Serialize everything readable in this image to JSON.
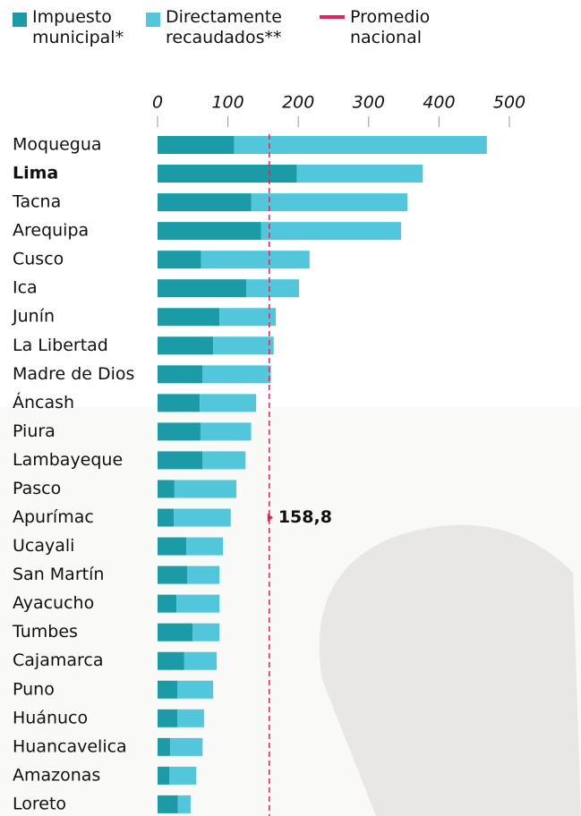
{
  "chart_data": {
    "type": "stacked-bar-horizontal",
    "categories": [
      "Moquegua",
      "Lima",
      "Tacna",
      "Arequipa",
      "Cusco",
      "Ica",
      "Junín",
      "La Libertad",
      "Madre de Dios",
      "Áncash",
      "Piura",
      "Lambayeque",
      "Pasco",
      "Apurímac",
      "Ucayali",
      "San Martín",
      "Ayacucho",
      "Tumbes",
      "Cajamarca",
      "Puno",
      "Huánuco",
      "Huancavelica",
      "Amazonas",
      "Loreto"
    ],
    "highlight": [
      1
    ],
    "series": [
      {
        "name": "Impuesto municipal*",
        "color": "#1a9ba5",
        "values": [
          109,
          198,
          133,
          147,
          62,
          126,
          88,
          79,
          64,
          60,
          61,
          64,
          24,
          23,
          41,
          42,
          27,
          50,
          38,
          28,
          28,
          18,
          17,
          29
        ]
      },
      {
        "name": "Directamente recaudados**",
        "color": "#52c7dc",
        "values": [
          359,
          179,
          222,
          199,
          154,
          75,
          80,
          86,
          97,
          80,
          72,
          61,
          88,
          81,
          52,
          46,
          61,
          38,
          46,
          51,
          38,
          46,
          38,
          18
        ]
      }
    ],
    "average": {
      "name": "Promedio nacional",
      "value": 158.8,
      "value_label": "158,8",
      "color": "#e0245e"
    },
    "xlim": [
      0,
      500
    ],
    "xticks": [
      0,
      100,
      200,
      300,
      400,
      500
    ]
  }
}
